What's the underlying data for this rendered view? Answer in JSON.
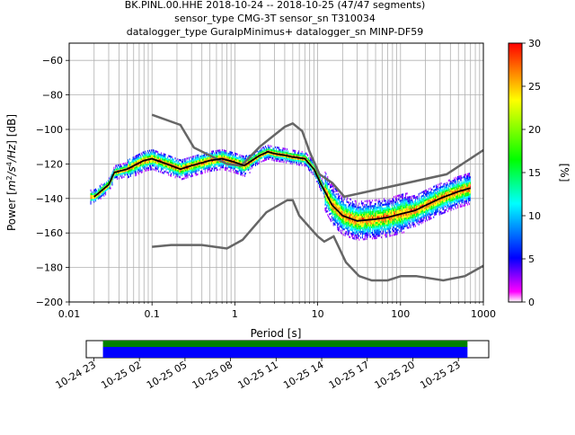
{
  "header": {
    "line1": "BK.PINL.00.HHE   2018-10-24 -- 2018-10-25  (47/47 segments)",
    "line2": "sensor_type CMG-3T sensor_sn T310034",
    "line3": "datalogger_type GuralpMinimus+ datalogger_sn MINP-DF59"
  },
  "colorbar": {
    "label": "[%]",
    "ticks": [
      "0",
      "5",
      "10",
      "15",
      "20",
      "25",
      "30"
    ],
    "range": [
      0,
      30
    ],
    "stops": [
      "#ffffff",
      "#ff00ff",
      "#0000ff",
      "#00ffff",
      "#00ff00",
      "#ffff00",
      "#ff0000"
    ]
  },
  "timeline": {
    "ticks": [
      "10-24 23",
      "10-25 02",
      "10-25 05",
      "10-25 08",
      "10-25 11",
      "10-25 14",
      "10-25 17",
      "10-25 20",
      "10-25 23"
    ],
    "tick_hours": [
      23,
      26,
      29,
      32,
      35,
      38,
      41,
      44,
      47
    ],
    "range_hours": [
      22.5,
      49.0
    ],
    "coverage_hours": [
      23.6,
      47.6
    ],
    "bar_colors": {
      "data": "#008000",
      "gaps": "#0000ff"
    }
  },
  "chart_data": {
    "type": "heatmap",
    "xlabel": "Period [s]",
    "ylabel_parts": [
      "Power [",
      "m",
      "2",
      "/s",
      "4",
      "/Hz",
      "] [dB]"
    ],
    "xscale": "log",
    "xlim": [
      0.01,
      1000
    ],
    "ylim": [
      -200,
      -50
    ],
    "xticks": [
      {
        "value": 0.01,
        "label": "0.01"
      },
      {
        "value": 0.1,
        "label": "0.1"
      },
      {
        "value": 1,
        "label": "1"
      },
      {
        "value": 10,
        "label": "10"
      },
      {
        "value": 100,
        "label": "100"
      },
      {
        "value": 1000,
        "label": "1000"
      }
    ],
    "yticks": [
      -60,
      -80,
      -100,
      -120,
      -140,
      -160,
      -180,
      -200
    ],
    "grid": true,
    "nhnm": {
      "x": [
        0.1,
        0.17,
        0.4,
        0.8,
        1.24,
        2.4,
        4.3,
        5.0,
        6.0,
        10.0,
        12.0,
        15.6,
        21.9,
        31.6,
        45.0,
        70.0,
        101.0,
        154.0,
        328.0,
        600.0,
        1000.0
      ],
      "y": [
        -168,
        -167,
        -167,
        -169,
        -164,
        -148,
        -141,
        -141,
        -150,
        -162,
        -165,
        -162,
        -177,
        -185,
        -187.5,
        -187.5,
        -185,
        -185,
        -187.5,
        -185,
        -179
      ]
    },
    "nlnm": {
      "x": [
        0.1,
        0.22,
        0.32,
        0.8,
        1.2,
        2.0,
        4.0,
        5.0,
        6.5,
        8.0,
        10.5,
        15.0,
        21.0,
        360.0,
        1000.0
      ],
      "y": [
        -91.5,
        -97.4,
        -110.5,
        -120,
        -121,
        -110,
        -98.5,
        -96.5,
        -101,
        -113,
        -126,
        -131,
        -139,
        -126,
        -112
      ]
    },
    "mode": {
      "x": [
        0.02,
        0.03,
        0.035,
        0.05,
        0.08,
        0.1,
        0.15,
        0.22,
        0.3,
        0.5,
        0.7,
        1.0,
        1.3,
        2.0,
        2.5,
        3.0,
        4.0,
        5.0,
        7.0,
        9.0,
        11.0,
        15.0,
        20.0,
        30.0,
        50.0,
        70.0,
        100.0,
        150.0,
        200.0,
        300.0,
        500.0,
        700.0
      ],
      "y": [
        -139,
        -132,
        -125,
        -123,
        -118,
        -117,
        -120,
        -123,
        -121,
        -118,
        -117,
        -119,
        -121,
        -115,
        -113,
        -114,
        -115,
        -116,
        -117,
        -123,
        -132,
        -144,
        -150,
        -153,
        -152,
        -151,
        -149,
        -147,
        -144,
        -140,
        -136,
        -134
      ]
    },
    "spread_sources": [
      {
        "x": [
          0.02,
          0.03,
          0.035,
          0.05,
          0.08,
          0.1,
          0.15,
          0.22,
          0.3,
          0.5,
          0.7,
          1.0,
          1.3,
          2.0,
          2.5,
          3.0,
          4.0,
          5.0,
          7.0,
          9.0,
          11.0,
          15.0,
          20.0,
          30.0,
          50.0,
          70.0,
          100.0,
          150.0,
          200.0,
          300.0,
          500.0,
          700.0
        ],
        "y": [
          -139,
          -132,
          -125,
          -123,
          -118,
          -117,
          -120,
          -123,
          -121,
          -118,
          -117,
          -119,
          -121,
          -115,
          -113,
          -114,
          -115,
          -116,
          -117,
          -123,
          -132,
          -144,
          -150,
          -153,
          -152,
          -151,
          -149,
          -147,
          -144,
          -140,
          -136,
          -134
        ]
      }
    ]
  }
}
